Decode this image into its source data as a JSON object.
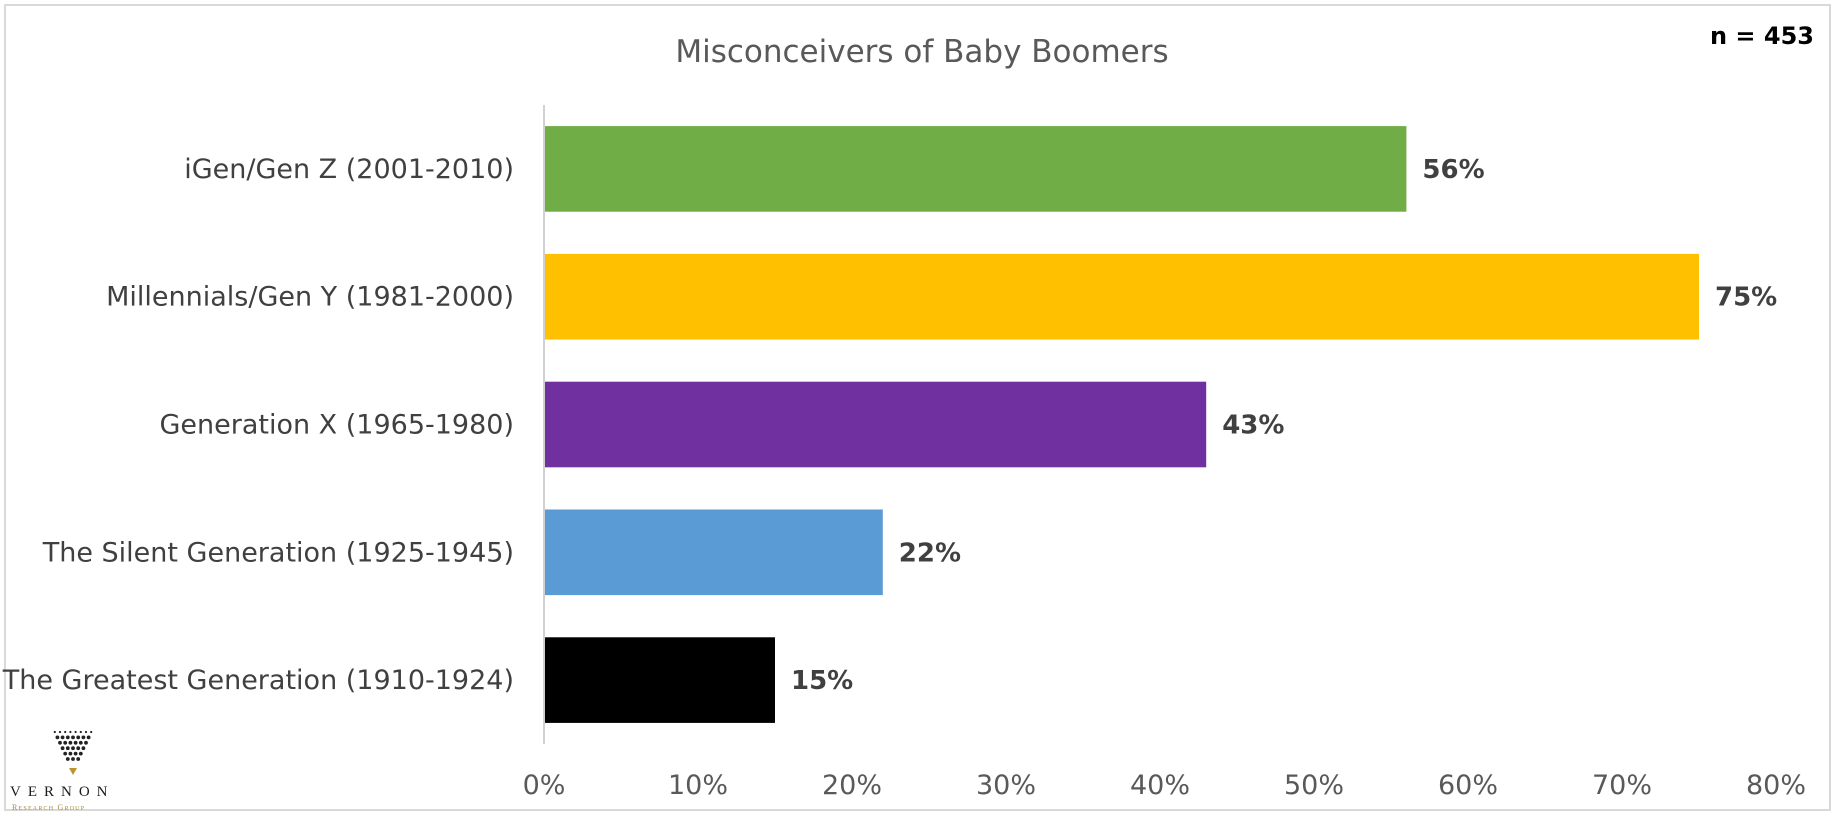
{
  "annotation": "n = 453",
  "logo": {
    "name": "VERNON",
    "sub": "Research Group"
  },
  "colors": {
    "axis": "#d0d0d0",
    "text": "#404040"
  },
  "chart_data": {
    "type": "bar",
    "orientation": "horizontal",
    "title": "Misconceivers of Baby Boomers",
    "categories": [
      "iGen/Gen Z (2001-2010)",
      "Millennials/Gen Y (1981-2000)",
      "Generation X (1965-1980)",
      "The Silent Generation (1925-1945)",
      "The Greatest Generation (1910-1924)"
    ],
    "values": [
      56,
      75,
      43,
      22,
      15
    ],
    "value_labels": [
      "56%",
      "75%",
      "43%",
      "22%",
      "15%"
    ],
    "bar_colors": [
      "#70ad47",
      "#ffc000",
      "#7030a0",
      "#5b9bd5",
      "#000000"
    ],
    "xlim": [
      0,
      80
    ],
    "xticks": [
      0,
      10,
      20,
      30,
      40,
      50,
      60,
      70,
      80
    ],
    "xtick_labels": [
      "0%",
      "10%",
      "20%",
      "30%",
      "40%",
      "50%",
      "60%",
      "70%",
      "80%"
    ],
    "xlabel": "",
    "ylabel": "",
    "grid": false,
    "legend": "none"
  }
}
